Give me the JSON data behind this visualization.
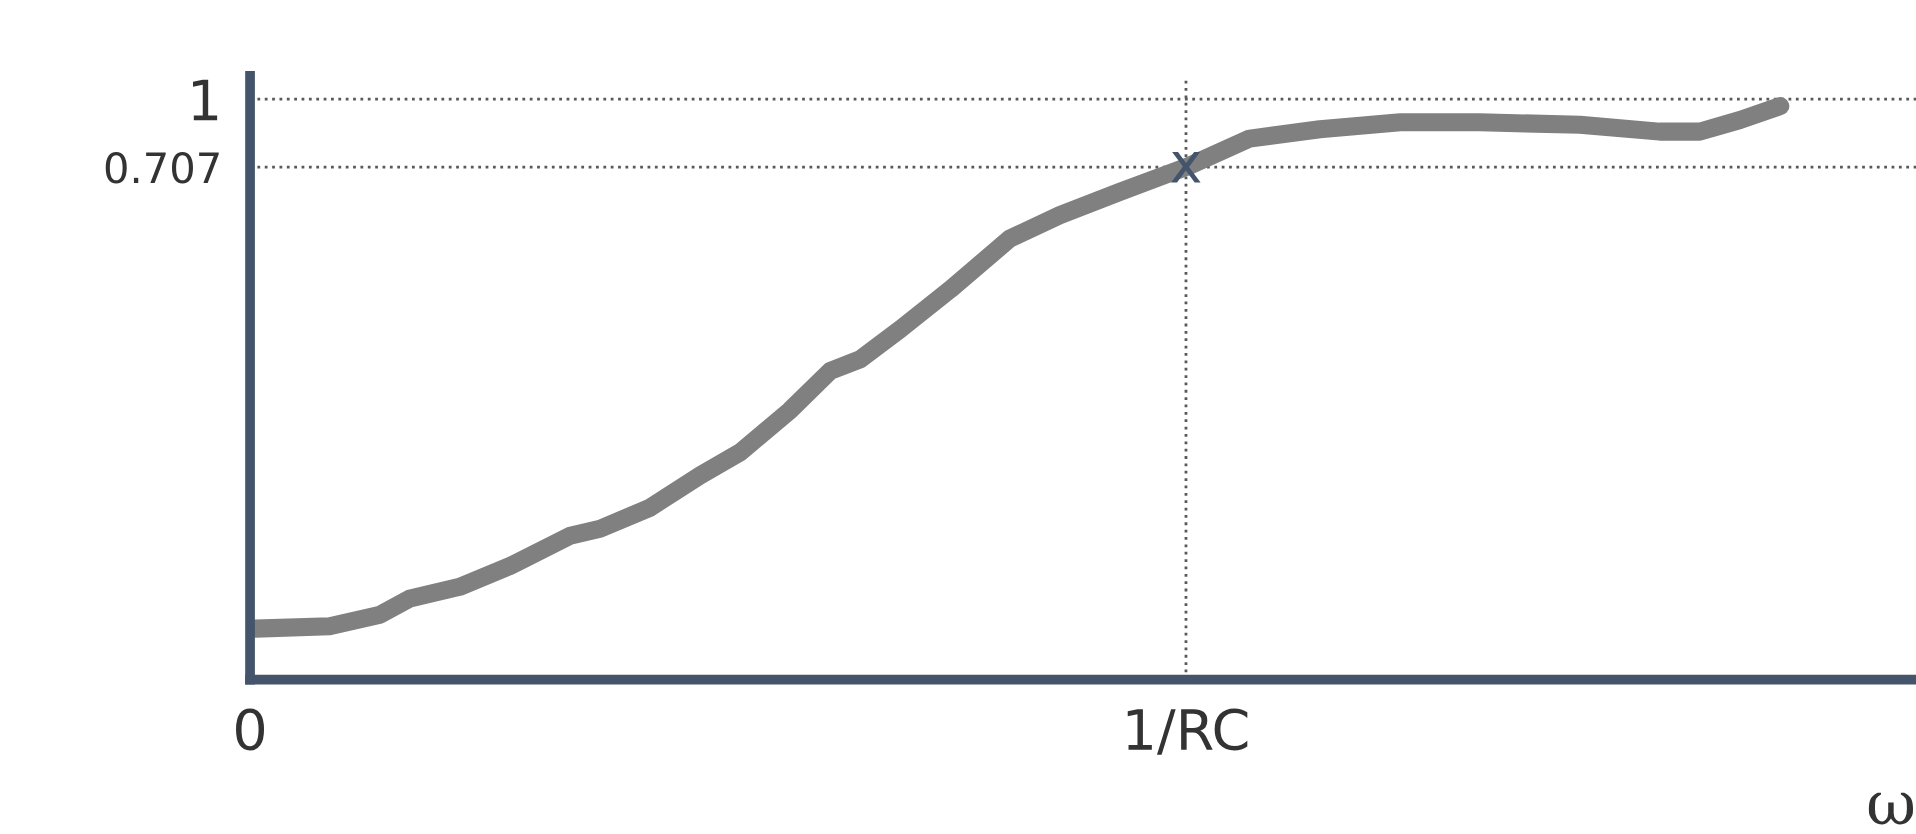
{
  "chart_data": {
    "type": "line",
    "x": [
      0.006,
      0.085,
      0.139,
      0.171,
      0.224,
      0.278,
      0.342,
      0.374,
      0.427,
      0.481,
      0.524,
      0.577,
      0.62,
      0.652,
      0.695,
      0.748,
      0.812,
      0.865,
      0.929,
      1.0,
      1.068,
      1.143,
      1.229,
      1.314,
      1.421,
      1.506,
      1.549,
      1.592,
      1.635
    ],
    "series": [
      {
        "color": "#808080",
        "values": [
          -1.28,
          -1.27,
          -1.22,
          -1.15,
          -1.1,
          -1.01,
          -0.88,
          -0.85,
          -0.76,
          -0.62,
          -0.52,
          -0.34,
          -0.17,
          -0.12,
          0.01,
          0.18,
          0.4,
          0.5,
          0.6,
          0.707,
          0.83,
          0.87,
          0.9,
          0.9,
          0.89,
          0.86,
          0.86,
          0.91,
          0.97
        ]
      }
    ],
    "xlabel": "ω",
    "xlim": [
      0,
      1.78
    ],
    "xticks": [
      {
        "value": 0,
        "label": "0"
      },
      {
        "value": 1,
        "label": "1/RC"
      }
    ],
    "ylim": [
      -1.5,
      1.1
    ],
    "yticks": [
      {
        "value": 1,
        "label": "1"
      },
      {
        "value": 0.707,
        "label": "0.707"
      }
    ],
    "ref_lines": [
      {
        "axis": "y",
        "value": 1,
        "color": "#595959",
        "line_style": "dotted"
      },
      {
        "axis": "y",
        "value": 0.707,
        "color": "#595959",
        "line_style": "dotted"
      },
      {
        "axis": "x",
        "value": 1,
        "color": "#595959",
        "line_style": "dotted"
      }
    ],
    "annotations": [
      {
        "text": "x",
        "x": 1,
        "y": 0.707
      }
    ],
    "grid": false,
    "legend": false,
    "marker": "none",
    "line_style": "solid"
  }
}
